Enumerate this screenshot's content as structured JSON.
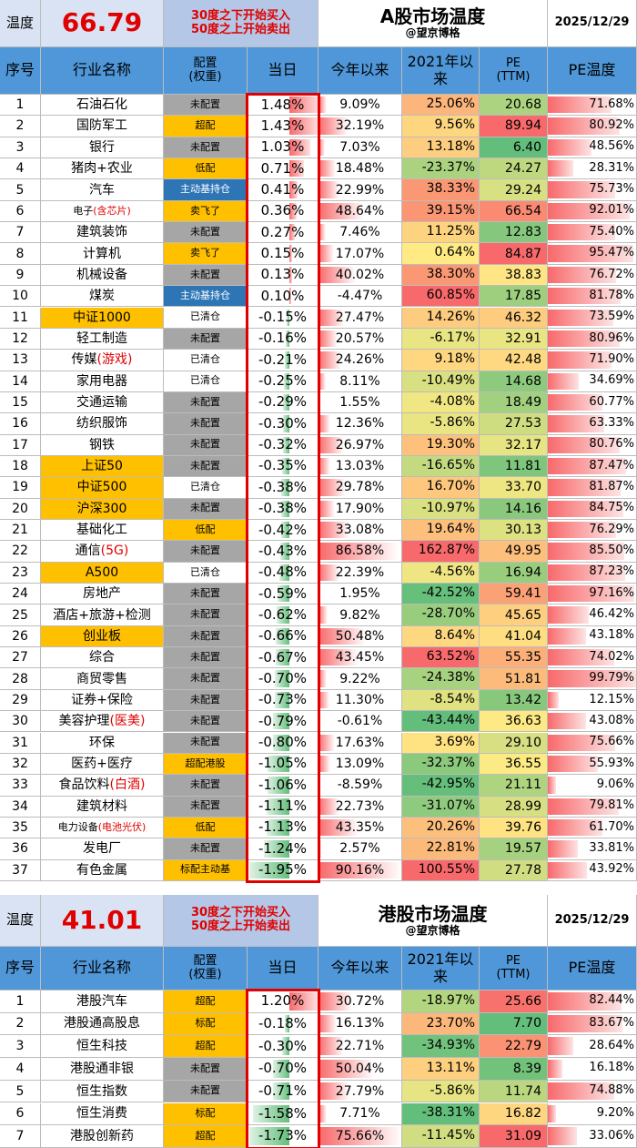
{
  "sections": [
    {
      "label": "温度",
      "temperature": "66.79",
      "note": "30度之下开始买入\n50度之上开始卖出",
      "title": "A股市场温度",
      "subtitle": "@望京博格",
      "date": "2025/12/29",
      "columns": [
        "序号",
        "行业名称",
        "配置\n(权重)",
        "当日",
        "今年以来",
        "2021年以来",
        "PE\n(TTM)",
        "PE温度"
      ],
      "rows": [
        {
          "n": "1",
          "name": "石油石化",
          "cfg": "未配置",
          "cfg_bg": "#a6a6a6",
          "day": "1.48%",
          "ytd": "9.09%",
          "y21": "25.06%",
          "pe": "20.68",
          "pet": "71.68%"
        },
        {
          "n": "2",
          "name": "国防军工",
          "cfg": "超配",
          "cfg_bg": "#ffc000",
          "day": "1.43%",
          "ytd": "32.19%",
          "y21": "9.56%",
          "pe": "89.94",
          "pet": "80.92%"
        },
        {
          "n": "3",
          "name": "银行",
          "cfg": "未配置",
          "cfg_bg": "#a6a6a6",
          "day": "1.03%",
          "ytd": "7.03%",
          "y21": "13.18%",
          "pe": "6.40",
          "pet": "48.56%"
        },
        {
          "n": "4",
          "name": "猪肉+农业",
          "cfg": "低配",
          "cfg_bg": "#ffc000",
          "day": "0.71%",
          "ytd": "18.48%",
          "y21": "-23.37%",
          "pe": "24.27",
          "pet": "28.31%"
        },
        {
          "n": "5",
          "name": "汽车",
          "cfg": "主动基持仓",
          "cfg_bg": "#2e75b6",
          "day": "0.41%",
          "ytd": "22.99%",
          "y21": "38.33%",
          "pe": "29.24",
          "pet": "75.73%"
        },
        {
          "n": "6",
          "name": "电子",
          "note": "(含芯片)",
          "cfg": "卖飞了",
          "cfg_bg": "#ffc000",
          "day": "0.36%",
          "ytd": "48.64%",
          "y21": "39.15%",
          "pe": "66.54",
          "pet": "92.01%"
        },
        {
          "n": "7",
          "name": "建筑装饰",
          "cfg": "未配置",
          "cfg_bg": "#a6a6a6",
          "day": "0.27%",
          "ytd": "7.46%",
          "y21": "11.25%",
          "pe": "12.83",
          "pet": "75.40%"
        },
        {
          "n": "8",
          "name": "计算机",
          "cfg": "卖飞了",
          "cfg_bg": "#ffc000",
          "day": "0.15%",
          "ytd": "17.07%",
          "y21": "0.64%",
          "pe": "84.87",
          "pet": "95.47%"
        },
        {
          "n": "9",
          "name": "机械设备",
          "cfg": "未配置",
          "cfg_bg": "#a6a6a6",
          "day": "0.13%",
          "ytd": "40.02%",
          "y21": "38.30%",
          "pe": "38.83",
          "pet": "76.72%"
        },
        {
          "n": "10",
          "name": "煤炭",
          "cfg": "主动基持仓",
          "cfg_bg": "#2e75b6",
          "day": "0.10%",
          "ytd": "-4.47%",
          "y21": "60.85%",
          "pe": "17.85",
          "pet": "81.78%"
        },
        {
          "n": "11",
          "name": "中证1000",
          "hl": "#ffc000",
          "cfg": "已清仓",
          "cfg_bg": "#ffffff",
          "day": "-0.15%",
          "ytd": "27.47%",
          "y21": "14.26%",
          "pe": "46.32",
          "pet": "73.59%"
        },
        {
          "n": "12",
          "name": "轻工制造",
          "cfg": "未配置",
          "cfg_bg": "#a6a6a6",
          "day": "-0.16%",
          "ytd": "20.57%",
          "y21": "-6.17%",
          "pe": "32.91",
          "pet": "80.96%"
        },
        {
          "n": "13",
          "name": "传媒",
          "note": "(游戏)",
          "cfg": "已清仓",
          "cfg_bg": "#ffffff",
          "day": "-0.21%",
          "ytd": "24.26%",
          "y21": "9.18%",
          "pe": "42.48",
          "pet": "71.90%"
        },
        {
          "n": "14",
          "name": "家用电器",
          "cfg": "已清仓",
          "cfg_bg": "#ffffff",
          "day": "-0.25%",
          "ytd": "8.11%",
          "y21": "-10.49%",
          "pe": "14.68",
          "pet": "34.69%"
        },
        {
          "n": "15",
          "name": "交通运输",
          "cfg": "未配置",
          "cfg_bg": "#a6a6a6",
          "day": "-0.29%",
          "ytd": "1.55%",
          "y21": "-4.08%",
          "pe": "18.49",
          "pet": "60.77%"
        },
        {
          "n": "16",
          "name": "纺织服饰",
          "cfg": "未配置",
          "cfg_bg": "#a6a6a6",
          "day": "-0.30%",
          "ytd": "12.36%",
          "y21": "-5.86%",
          "pe": "27.53",
          "pet": "63.33%"
        },
        {
          "n": "17",
          "name": "钢铁",
          "cfg": "未配置",
          "cfg_bg": "#a6a6a6",
          "day": "-0.32%",
          "ytd": "26.97%",
          "y21": "19.30%",
          "pe": "32.17",
          "pet": "80.76%"
        },
        {
          "n": "18",
          "name": "上证50",
          "hl": "#ffc000",
          "cfg": "未配置",
          "cfg_bg": "#a6a6a6",
          "day": "-0.35%",
          "ytd": "13.03%",
          "y21": "-16.65%",
          "pe": "11.81",
          "pet": "87.47%"
        },
        {
          "n": "19",
          "name": "中证500",
          "hl": "#ffc000",
          "cfg": "已清仓",
          "cfg_bg": "#ffffff",
          "day": "-0.38%",
          "ytd": "29.78%",
          "y21": "16.70%",
          "pe": "33.70",
          "pet": "81.87%"
        },
        {
          "n": "20",
          "name": "沪深300",
          "hl": "#ffc000",
          "cfg": "未配置",
          "cfg_bg": "#a6a6a6",
          "day": "-0.38%",
          "ytd": "17.90%",
          "y21": "-10.97%",
          "pe": "14.16",
          "pet": "84.75%"
        },
        {
          "n": "21",
          "name": "基础化工",
          "cfg": "低配",
          "cfg_bg": "#ffc000",
          "day": "-0.42%",
          "ytd": "33.08%",
          "y21": "19.64%",
          "pe": "30.13",
          "pet": "76.29%"
        },
        {
          "n": "22",
          "name": "通信",
          "note": "(5G)",
          "cfg": "未配置",
          "cfg_bg": "#a6a6a6",
          "day": "-0.43%",
          "ytd": "86.58%",
          "y21": "162.87%",
          "pe": "49.95",
          "pet": "85.50%"
        },
        {
          "n": "23",
          "name": "A500",
          "hl": "#ffc000",
          "cfg": "已清仓",
          "cfg_bg": "#ffffff",
          "day": "-0.48%",
          "ytd": "22.39%",
          "y21": "-4.56%",
          "pe": "16.94",
          "pet": "87.23%"
        },
        {
          "n": "24",
          "name": "房地产",
          "cfg": "未配置",
          "cfg_bg": "#a6a6a6",
          "day": "-0.59%",
          "ytd": "1.95%",
          "y21": "-42.52%",
          "pe": "59.41",
          "pet": "97.16%"
        },
        {
          "n": "25",
          "name": "酒店+旅游+检测",
          "cfg": "未配置",
          "cfg_bg": "#a6a6a6",
          "day": "-0.62%",
          "ytd": "9.82%",
          "y21": "-28.70%",
          "pe": "45.65",
          "pet": "46.42%"
        },
        {
          "n": "26",
          "name": "创业板",
          "hl": "#ffc000",
          "cfg": "未配置",
          "cfg_bg": "#a6a6a6",
          "day": "-0.66%",
          "ytd": "50.48%",
          "y21": "8.64%",
          "pe": "41.04",
          "pet": "43.18%"
        },
        {
          "n": "27",
          "name": "综合",
          "cfg": "未配置",
          "cfg_bg": "#a6a6a6",
          "day": "-0.67%",
          "ytd": "43.45%",
          "y21": "63.52%",
          "pe": "55.35",
          "pet": "74.02%"
        },
        {
          "n": "28",
          "name": "商贸零售",
          "cfg": "未配置",
          "cfg_bg": "#a6a6a6",
          "day": "-0.70%",
          "ytd": "9.22%",
          "y21": "-24.38%",
          "pe": "51.81",
          "pet": "99.79%"
        },
        {
          "n": "29",
          "name": "证券+保险",
          "cfg": "未配置",
          "cfg_bg": "#a6a6a6",
          "day": "-0.73%",
          "ytd": "11.30%",
          "y21": "-8.54%",
          "pe": "13.42",
          "pet": "12.15%"
        },
        {
          "n": "30",
          "name": "美容护理",
          "note": "(医美)",
          "cfg": "未配置",
          "cfg_bg": "#a6a6a6",
          "day": "-0.79%",
          "ytd": "-0.61%",
          "y21": "-43.44%",
          "pe": "36.63",
          "pet": "43.08%"
        },
        {
          "n": "31",
          "name": "环保",
          "cfg": "未配置",
          "cfg_bg": "#a6a6a6",
          "day": "-0.80%",
          "ytd": "17.63%",
          "y21": "3.69%",
          "pe": "29.10",
          "pet": "75.66%"
        },
        {
          "n": "32",
          "name": "医药+医疗",
          "cfg": "超配港股",
          "cfg_bg": "#ffc000",
          "day": "-1.05%",
          "ytd": "13.09%",
          "y21": "-32.37%",
          "pe": "36.55",
          "pet": "55.93%"
        },
        {
          "n": "33",
          "name": "食品饮料",
          "note": "(白酒)",
          "cfg": "未配置",
          "cfg_bg": "#a6a6a6",
          "day": "-1.06%",
          "ytd": "-8.59%",
          "y21": "-42.95%",
          "pe": "21.11",
          "pet": "9.06%"
        },
        {
          "n": "34",
          "name": "建筑材料",
          "cfg": "未配置",
          "cfg_bg": "#a6a6a6",
          "day": "-1.11%",
          "ytd": "22.73%",
          "y21": "-31.07%",
          "pe": "28.99",
          "pet": "79.81%"
        },
        {
          "n": "35",
          "name": "电力设备",
          "note": "(电池光伏)",
          "cfg": "低配",
          "cfg_bg": "#ffc000",
          "day": "-1.13%",
          "ytd": "43.35%",
          "y21": "20.26%",
          "pe": "39.76",
          "pet": "61.70%"
        },
        {
          "n": "36",
          "name": "发电厂",
          "cfg": "未配置",
          "cfg_bg": "#a6a6a6",
          "day": "-1.24%",
          "ytd": "2.57%",
          "y21": "22.81%",
          "pe": "19.57",
          "pet": "33.81%"
        },
        {
          "n": "37",
          "name": "有色金属",
          "cfg": "标配主动基",
          "cfg_bg": "#ffc000",
          "day": "-1.95%",
          "ytd": "90.16%",
          "y21": "100.55%",
          "pe": "27.78",
          "pet": "43.92%"
        }
      ]
    },
    {
      "label": "温度",
      "temperature": "41.01",
      "note": "30度之下开始买入\n50度之上开始卖出",
      "title": "港股市场温度",
      "subtitle": "@望京博格",
      "date": "2025/12/29",
      "columns": [
        "序号",
        "行业名称",
        "配置\n(权重)",
        "当日",
        "今年以来",
        "2021年以来",
        "PE\n(TTM)",
        "PE温度"
      ],
      "rows": [
        {
          "n": "1",
          "name": "港股汽车",
          "cfg": "超配",
          "cfg_bg": "#ffc000",
          "day": "1.20%",
          "ytd": "30.72%",
          "y21": "-18.97%",
          "pe": "25.66",
          "pet": "82.44%"
        },
        {
          "n": "2",
          "name": "港股通高股息",
          "cfg": "标配",
          "cfg_bg": "#ffc000",
          "day": "-0.18%",
          "ytd": "16.13%",
          "y21": "23.70%",
          "pe": "7.70",
          "pet": "83.67%"
        },
        {
          "n": "3",
          "name": "恒生科技",
          "cfg": "超配",
          "cfg_bg": "#ffc000",
          "day": "-0.30%",
          "ytd": "22.71%",
          "y21": "-34.93%",
          "pe": "22.79",
          "pet": "28.64%"
        },
        {
          "n": "4",
          "name": "港股通非银",
          "cfg": "未配置",
          "cfg_bg": "#a6a6a6",
          "day": "-0.70%",
          "ytd": "50.04%",
          "y21": "13.11%",
          "pe": "8.39",
          "pet": "16.18%"
        },
        {
          "n": "5",
          "name": "恒生指数",
          "cfg": "未配置",
          "cfg_bg": "#a6a6a6",
          "day": "-0.71%",
          "ytd": "27.79%",
          "y21": "-5.86%",
          "pe": "11.74",
          "pet": "74.88%"
        },
        {
          "n": "6",
          "name": "恒生消费",
          "cfg": "标配",
          "cfg_bg": "#ffc000",
          "day": "-1.58%",
          "ytd": "7.71%",
          "y21": "-38.31%",
          "pe": "16.82",
          "pet": "9.20%"
        },
        {
          "n": "7",
          "name": "港股创新药",
          "cfg": "超配",
          "cfg_bg": "#ffc000",
          "day": "-1.73%",
          "ytd": "75.66%",
          "y21": "-11.45%",
          "pe": "31.09",
          "pet": "33.06%"
        }
      ]
    }
  ]
}
